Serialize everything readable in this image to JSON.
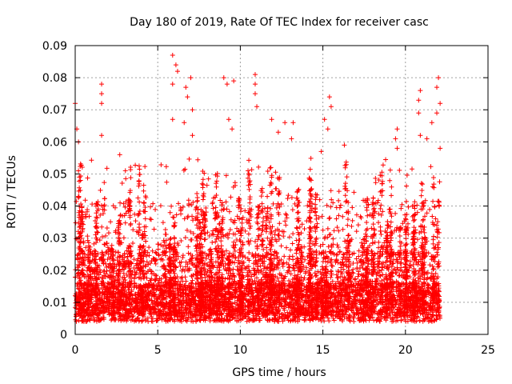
{
  "chart_data": {
    "type": "scatter",
    "title": "Day 180 of 2019, Rate Of TEC Index for receiver casc",
    "xlabel": "GPS time / hours",
    "ylabel": "ROTI / TECUs",
    "xlim": [
      0,
      25
    ],
    "ylim": [
      0,
      0.09
    ],
    "x_ticks": [
      0,
      5,
      10,
      15,
      20,
      25
    ],
    "y_ticks": [
      0,
      0.01,
      0.02,
      0.03,
      0.04,
      0.05,
      0.06,
      0.07,
      0.08,
      0.09
    ],
    "x_tick_labels": [
      "0",
      "5",
      "10",
      "15",
      "20",
      "25"
    ],
    "y_tick_labels": [
      "0",
      "0.01",
      "0.02",
      "0.03",
      "0.04",
      "0.05",
      "0.06",
      "0.07",
      "0.08",
      "0.09"
    ],
    "grid": true,
    "marker": "+",
    "color": "#ff0000",
    "series": [
      {
        "name": "ROTI",
        "x_range": [
          0,
          22.1
        ],
        "bulk_range": [
          0.003,
          0.03
        ],
        "peaks": [
          {
            "x": 0.0,
            "y": 0.072
          },
          {
            "x": 0.1,
            "y": 0.064
          },
          {
            "x": 0.2,
            "y": 0.06
          },
          {
            "x": 1.6,
            "y": 0.078
          },
          {
            "x": 1.6,
            "y": 0.075
          },
          {
            "x": 1.6,
            "y": 0.072
          },
          {
            "x": 1.6,
            "y": 0.062
          },
          {
            "x": 2.7,
            "y": 0.056
          },
          {
            "x": 5.9,
            "y": 0.087
          },
          {
            "x": 6.1,
            "y": 0.084
          },
          {
            "x": 6.2,
            "y": 0.082
          },
          {
            "x": 5.9,
            "y": 0.078
          },
          {
            "x": 6.7,
            "y": 0.077
          },
          {
            "x": 7.0,
            "y": 0.08
          },
          {
            "x": 6.8,
            "y": 0.074
          },
          {
            "x": 7.1,
            "y": 0.07
          },
          {
            "x": 7.1,
            "y": 0.062
          },
          {
            "x": 6.6,
            "y": 0.066
          },
          {
            "x": 5.9,
            "y": 0.067
          },
          {
            "x": 9.0,
            "y": 0.08
          },
          {
            "x": 9.2,
            "y": 0.078
          },
          {
            "x": 9.6,
            "y": 0.079
          },
          {
            "x": 10.9,
            "y": 0.081
          },
          {
            "x": 10.9,
            "y": 0.078
          },
          {
            "x": 10.9,
            "y": 0.075
          },
          {
            "x": 11.0,
            "y": 0.071
          },
          {
            "x": 9.3,
            "y": 0.067
          },
          {
            "x": 9.5,
            "y": 0.064
          },
          {
            "x": 11.9,
            "y": 0.067
          },
          {
            "x": 12.7,
            "y": 0.066
          },
          {
            "x": 13.2,
            "y": 0.066
          },
          {
            "x": 12.3,
            "y": 0.063
          },
          {
            "x": 13.1,
            "y": 0.061
          },
          {
            "x": 15.4,
            "y": 0.074
          },
          {
            "x": 15.5,
            "y": 0.071
          },
          {
            "x": 15.1,
            "y": 0.067
          },
          {
            "x": 15.3,
            "y": 0.064
          },
          {
            "x": 16.3,
            "y": 0.059
          },
          {
            "x": 14.9,
            "y": 0.057
          },
          {
            "x": 19.5,
            "y": 0.064
          },
          {
            "x": 19.4,
            "y": 0.061
          },
          {
            "x": 19.5,
            "y": 0.058
          },
          {
            "x": 20.9,
            "y": 0.076
          },
          {
            "x": 20.8,
            "y": 0.073
          },
          {
            "x": 20.8,
            "y": 0.069
          },
          {
            "x": 20.9,
            "y": 0.062
          },
          {
            "x": 22.0,
            "y": 0.08
          },
          {
            "x": 21.9,
            "y": 0.077
          },
          {
            "x": 22.1,
            "y": 0.072
          },
          {
            "x": 21.9,
            "y": 0.069
          },
          {
            "x": 21.6,
            "y": 0.066
          },
          {
            "x": 21.3,
            "y": 0.061
          },
          {
            "x": 22.1,
            "y": 0.058
          }
        ]
      }
    ]
  }
}
